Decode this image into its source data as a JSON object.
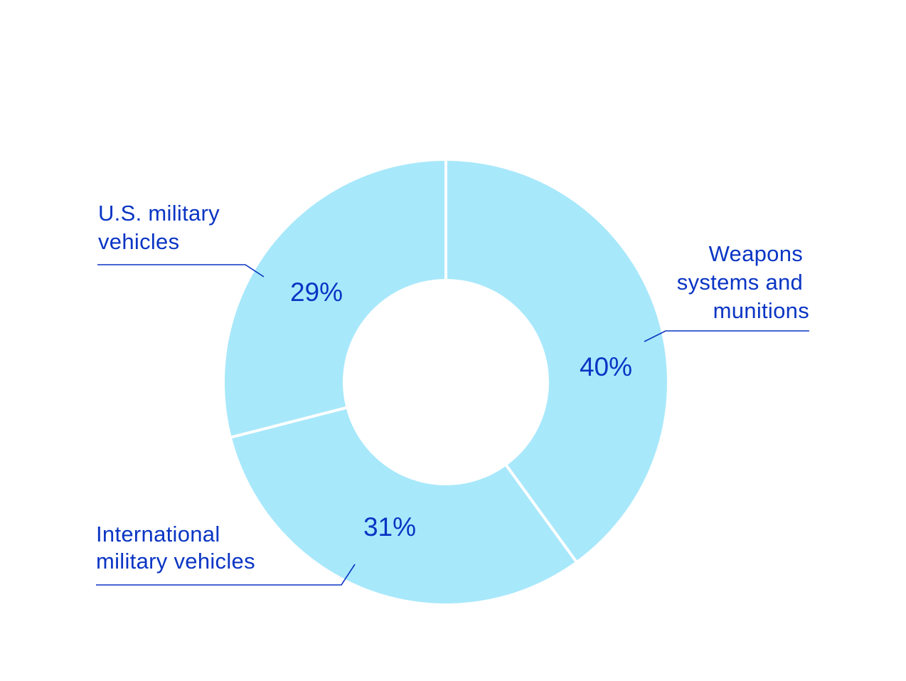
{
  "chart_data": {
    "type": "pie",
    "variant": "donut",
    "start": "12 o'clock, clockwise",
    "categories": [
      "Weapons systems and munitions",
      "International military vehicles",
      "U.S. military vehicles"
    ],
    "values": [
      40,
      31,
      29
    ],
    "value_labels": [
      "40%",
      "31%",
      "29%"
    ],
    "label_lines": [
      [
        "Weapons",
        "systems and",
        "munitions"
      ],
      [
        "International",
        "military vehicles"
      ],
      [
        "U.S. military",
        "vehicles"
      ]
    ],
    "legend": "callout labels with leader lines"
  },
  "colors": {
    "slice": "#a8e8fb",
    "separator": "#ffffff",
    "text": "#0a35c4",
    "leader": "#0a35c4",
    "background": "#ffffff"
  }
}
